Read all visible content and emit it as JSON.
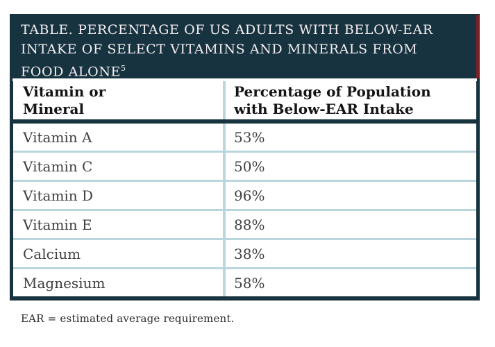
{
  "caption": {
    "title": "TABLE. PERCENTAGE OF US ADULTS WITH BELOW-EAR INTAKE OF SELECT VITAMINS AND MINERALS FROM FOOD ALONE",
    "reference_superscript": "5"
  },
  "table": {
    "columns": [
      {
        "label": "Vitamin or Mineral"
      },
      {
        "label": "Percentage of Population with Below-EAR Intake"
      }
    ],
    "rows": [
      {
        "nutrient": "Vitamin A",
        "percentage": "53%"
      },
      {
        "nutrient": "Vitamin C",
        "percentage": "50%"
      },
      {
        "nutrient": "Vitamin D",
        "percentage": "96%"
      },
      {
        "nutrient": "Vitamin E",
        "percentage": "88%"
      },
      {
        "nutrient": "Calcium",
        "percentage": "38%"
      },
      {
        "nutrient": "Magnesium",
        "percentage": "58%"
      }
    ]
  },
  "footnote": {
    "text": "EAR = estimated average requirement."
  },
  "colors": {
    "caption_background": "#16333f",
    "caption_text": "#f5eef3",
    "accent_stripe": "#7b2025",
    "table_border": "#16333f",
    "cell_divider": "#b9d6de",
    "header_text": "#141414",
    "body_text": "#3f3f3f"
  }
}
